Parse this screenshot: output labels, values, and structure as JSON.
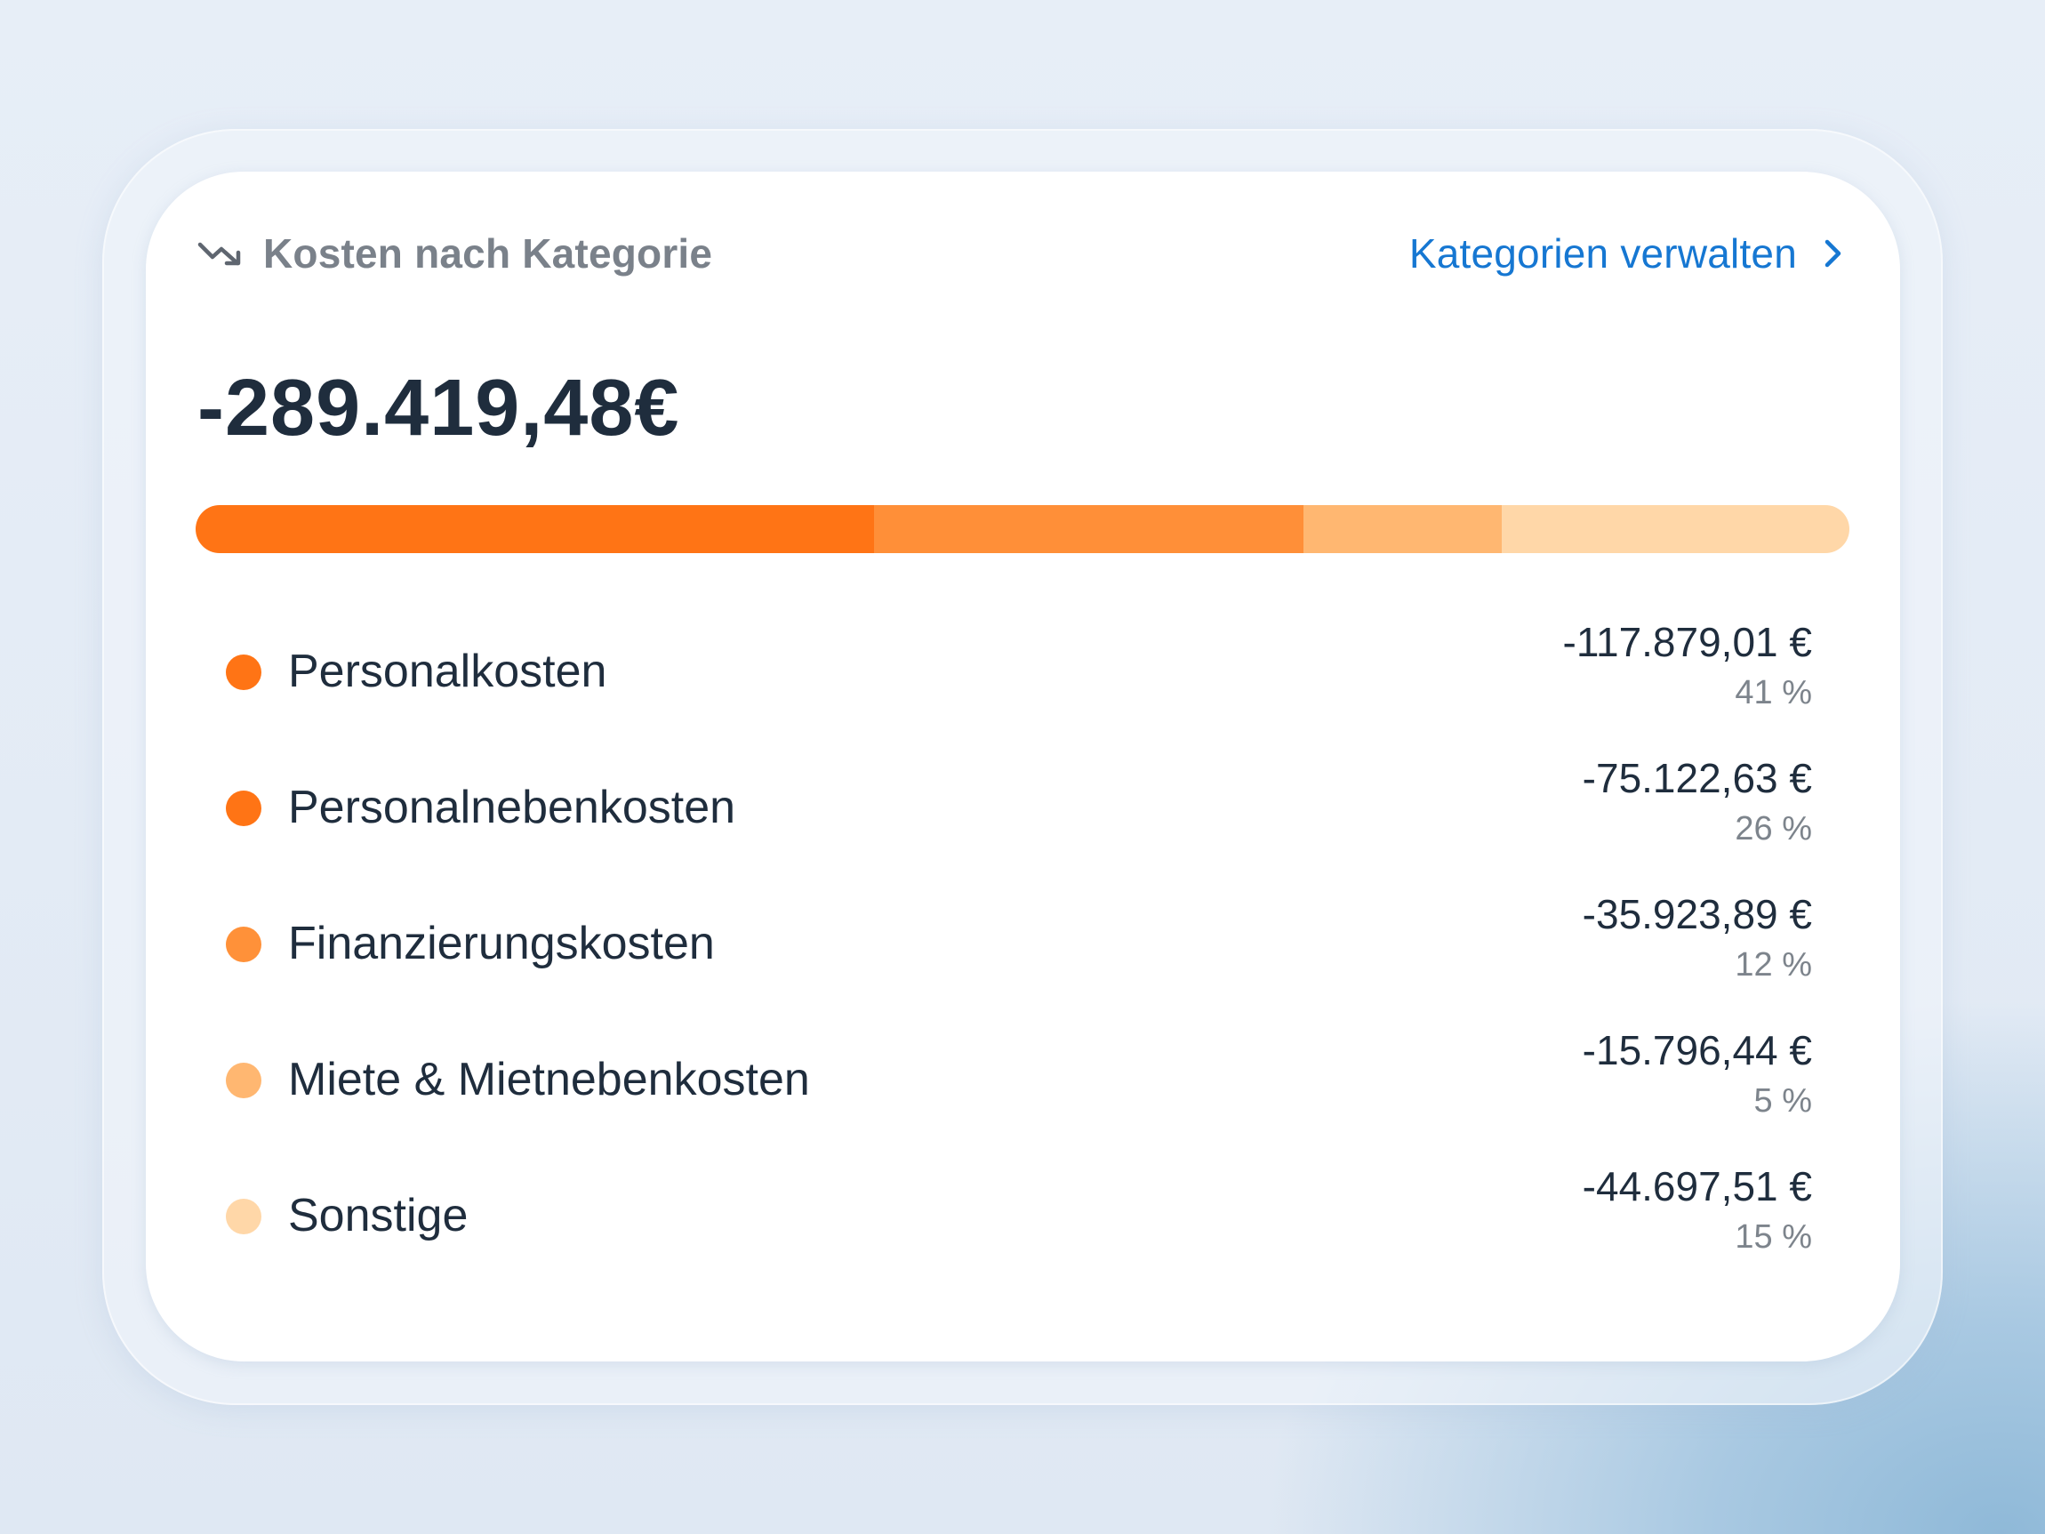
{
  "card": {
    "title": "Kosten nach Kategorie",
    "title_icon": "trending-down-icon",
    "manage_link": {
      "label": "Kategorien verwalten",
      "icon": "chevron-right-icon",
      "color": "#1677d2"
    },
    "total": "-289.419,48€"
  },
  "categories": [
    {
      "name": "Personalkosten",
      "amount": "-117.879,01 €",
      "percent_label": "41 %",
      "share": 41,
      "color": "#ff7415"
    },
    {
      "name": "Personalnebenkosten",
      "amount": "-75.122,63 €",
      "percent_label": "26 %",
      "share": 26,
      "color": "#ff7415"
    },
    {
      "name": "Finanzierungskosten",
      "amount": "-35.923,89 €",
      "percent_label": "12 %",
      "share": 12,
      "color": "#ff9139"
    },
    {
      "name": "Miete & Mietnebenkosten",
      "amount": "-15.796,44 €",
      "percent_label": "5 %",
      "share": 5,
      "color": "#ffb771"
    },
    {
      "name": "Sonstige",
      "amount": "-44.697,51 €",
      "percent_label": "15 %",
      "share": 15,
      "color": "#ffd7a8"
    }
  ],
  "stacked_bar": [
    {
      "share": 41,
      "color": "#ff7415"
    },
    {
      "share": 26,
      "color": "#ff8f38"
    },
    {
      "share": 12,
      "color": "#ffb771"
    },
    {
      "share": 21,
      "color": "#ffd7a8"
    }
  ]
}
